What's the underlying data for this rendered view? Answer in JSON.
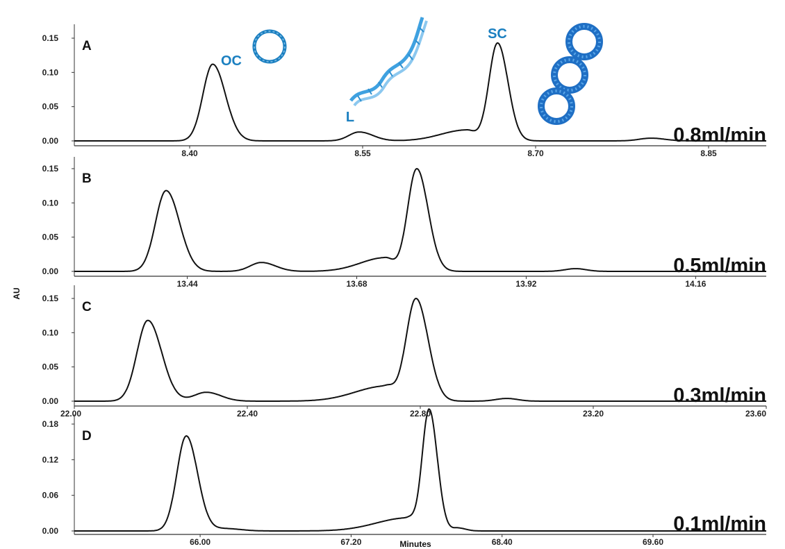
{
  "figure": {
    "y_axis_label": "AU",
    "x_axis_label": "Minutes",
    "peak_labels": [
      "OC",
      "L",
      "SC"
    ],
    "accent_color": "#1a7fc0"
  },
  "chart_data": [
    {
      "type": "line",
      "panel": "A",
      "flow_rate": "0.8ml/min",
      "xlim": [
        8.3,
        8.9
      ],
      "ylim": [
        -0.01,
        0.18
      ],
      "x_ticks": [
        8.4,
        8.55,
        8.7,
        8.85
      ],
      "x_tick_labels": [
        "8.40",
        "8.55",
        "8.70",
        "8.85"
      ],
      "y_ticks": [
        0.0,
        0.05,
        0.1,
        0.15
      ],
      "y_tick_labels": [
        "0.00",
        "0.05",
        "0.10",
        "0.15"
      ],
      "baseline": 0.0,
      "peaks": [
        {
          "label": "OC",
          "x": 8.42,
          "height": 0.112,
          "sigma_left": 0.0085,
          "sigma_right": 0.011
        },
        {
          "label": "L",
          "x": 8.547,
          "height": 0.013,
          "sigma_left": 0.009,
          "sigma_right": 0.012
        },
        {
          "x": 8.64,
          "height": 0.016,
          "sigma_left": 0.022,
          "sigma_right": 0.008
        },
        {
          "label": "SC",
          "x": 8.667,
          "height": 0.143,
          "sigma_left": 0.0075,
          "sigma_right": 0.009
        },
        {
          "x": 8.8,
          "height": 0.004,
          "sigma_left": 0.01,
          "sigma_right": 0.012
        }
      ]
    },
    {
      "type": "line",
      "panel": "B",
      "flow_rate": "0.5ml/min",
      "xlim": [
        13.28,
        14.26
      ],
      "ylim": [
        -0.01,
        0.18
      ],
      "x_ticks": [
        13.44,
        13.68,
        13.92,
        14.16
      ],
      "x_tick_labels": [
        "13.44",
        "13.68",
        "13.92",
        "14.16"
      ],
      "y_ticks": [
        0.0,
        0.05,
        0.1,
        0.15
      ],
      "y_tick_labels": [
        "0.00",
        "0.05",
        "0.10",
        "0.15"
      ],
      "baseline": 0.0,
      "peaks": [
        {
          "x": 13.41,
          "height": 0.118,
          "sigma_left": 0.015,
          "sigma_right": 0.019
        },
        {
          "x": 13.545,
          "height": 0.013,
          "sigma_left": 0.016,
          "sigma_right": 0.02
        },
        {
          "x": 13.72,
          "height": 0.02,
          "sigma_left": 0.035,
          "sigma_right": 0.012
        },
        {
          "x": 13.765,
          "height": 0.15,
          "sigma_left": 0.013,
          "sigma_right": 0.016
        },
        {
          "x": 13.99,
          "height": 0.004,
          "sigma_left": 0.015,
          "sigma_right": 0.015
        }
      ]
    },
    {
      "type": "line",
      "panel": "C",
      "flow_rate": "0.3ml/min",
      "xlim": [
        22.0,
        23.6
      ],
      "ylim": [
        -0.01,
        0.18
      ],
      "x_ticks": [
        22.0,
        22.4,
        22.8,
        23.2,
        23.6
      ],
      "x_tick_labels": [
        "22.00",
        "22.40",
        "22.80",
        "23.20",
        "23.60"
      ],
      "y_ticks": [
        0.0,
        0.05,
        0.1,
        0.15
      ],
      "y_tick_labels": [
        "0.00",
        "0.05",
        "0.10",
        "0.15"
      ],
      "baseline": 0.0,
      "peaks": [
        {
          "x": 22.17,
          "height": 0.118,
          "sigma_left": 0.025,
          "sigma_right": 0.032
        },
        {
          "x": 22.305,
          "height": 0.013,
          "sigma_left": 0.028,
          "sigma_right": 0.034
        },
        {
          "x": 22.72,
          "height": 0.022,
          "sigma_left": 0.07,
          "sigma_right": 0.02
        },
        {
          "x": 22.79,
          "height": 0.15,
          "sigma_left": 0.023,
          "sigma_right": 0.028
        },
        {
          "x": 23.0,
          "height": 0.004,
          "sigma_left": 0.025,
          "sigma_right": 0.025
        }
      ]
    },
    {
      "type": "line",
      "panel": "D",
      "flow_rate": "0.1ml/min",
      "xlim": [
        65.0,
        70.5
      ],
      "ylim": [
        -0.01,
        0.22
      ],
      "x_ticks": [
        66.0,
        67.2,
        68.4,
        69.6
      ],
      "x_tick_labels": [
        "66.00",
        "67.20",
        "68.40",
        "69.60"
      ],
      "y_ticks": [
        0.0,
        0.06,
        0.12,
        0.18
      ],
      "y_tick_labels": [
        "0.00",
        "0.06",
        "0.12",
        "0.18"
      ],
      "baseline": 0.0,
      "peaks": [
        {
          "x": 65.89,
          "height": 0.16,
          "sigma_left": 0.075,
          "sigma_right": 0.09
        },
        {
          "x": 66.2,
          "height": 0.004,
          "sigma_left": 0.09,
          "sigma_right": 0.12
        },
        {
          "x": 67.65,
          "height": 0.022,
          "sigma_left": 0.25,
          "sigma_right": 0.06
        },
        {
          "x": 67.82,
          "height": 0.205,
          "sigma_left": 0.055,
          "sigma_right": 0.065
        },
        {
          "x": 68.05,
          "height": 0.005,
          "sigma_left": 0.04,
          "sigma_right": 0.06
        }
      ]
    }
  ]
}
